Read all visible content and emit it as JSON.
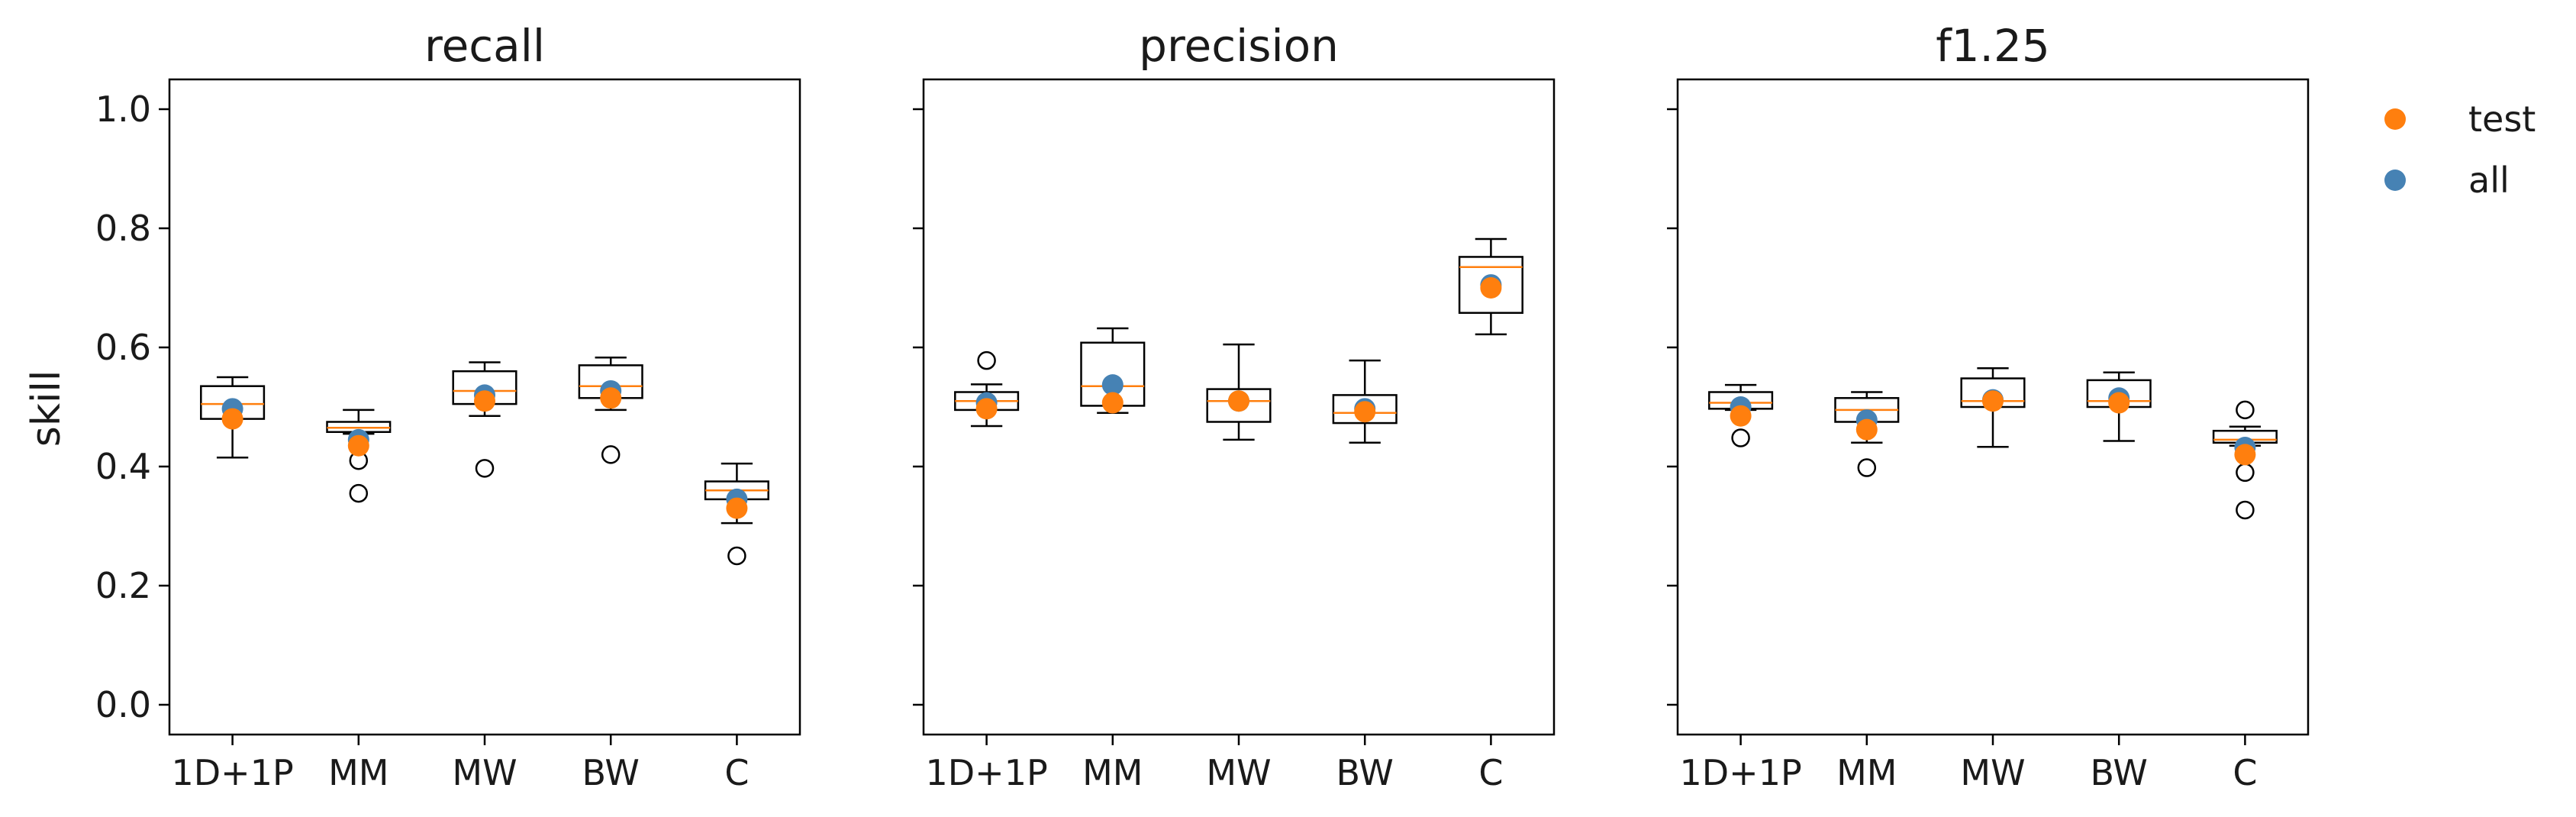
{
  "chart_data": {
    "type": "box",
    "ylabel": "skill",
    "categories": [
      "1D+1P",
      "MM",
      "MW",
      "BW",
      "C"
    ],
    "yticks": [
      "0.0",
      "0.2",
      "0.4",
      "0.6",
      "0.8",
      "1.0"
    ],
    "ylim": [
      -0.05,
      1.05
    ],
    "shared_y": true,
    "grid": false,
    "legend": {
      "placement": "top-right outside",
      "entries": [
        {
          "name": "test",
          "color": "#ff7f0e"
        },
        {
          "name": "all",
          "color": "#4682b4"
        }
      ]
    },
    "colors": {
      "box": "#000000",
      "median": "#ff7f0e",
      "test": "#ff7f0e",
      "all": "#4682b4"
    },
    "panels": [
      {
        "title": "recall",
        "boxes": [
          {
            "category": "1D+1P",
            "whisker_low": 0.415,
            "q1": 0.48,
            "median": 0.505,
            "q3": 0.535,
            "whisker_high": 0.55,
            "outliers": [],
            "test": 0.48,
            "all": 0.497
          },
          {
            "category": "MM",
            "whisker_low": 0.455,
            "q1": 0.458,
            "median": 0.465,
            "q3": 0.475,
            "whisker_high": 0.495,
            "outliers": [
              0.41,
              0.355
            ],
            "test": 0.435,
            "all": 0.445
          },
          {
            "category": "MW",
            "whisker_low": 0.485,
            "q1": 0.505,
            "median": 0.527,
            "q3": 0.56,
            "whisker_high": 0.575,
            "outliers": [
              0.397
            ],
            "test": 0.51,
            "all": 0.52
          },
          {
            "category": "BW",
            "whisker_low": 0.495,
            "q1": 0.515,
            "median": 0.535,
            "q3": 0.57,
            "whisker_high": 0.583,
            "outliers": [
              0.42
            ],
            "test": 0.515,
            "all": 0.527
          },
          {
            "category": "C",
            "whisker_low": 0.305,
            "q1": 0.345,
            "median": 0.36,
            "q3": 0.375,
            "whisker_high": 0.405,
            "outliers": [
              0.25
            ],
            "test": 0.33,
            "all": 0.345
          }
        ]
      },
      {
        "title": "precision",
        "boxes": [
          {
            "category": "1D+1P",
            "whisker_low": 0.468,
            "q1": 0.495,
            "median": 0.51,
            "q3": 0.525,
            "whisker_high": 0.538,
            "outliers": [
              0.578
            ],
            "test": 0.497,
            "all": 0.507
          },
          {
            "category": "MM",
            "whisker_low": 0.49,
            "q1": 0.502,
            "median": 0.535,
            "q3": 0.608,
            "whisker_high": 0.632,
            "outliers": [],
            "test": 0.507,
            "all": 0.537
          },
          {
            "category": "MW",
            "whisker_low": 0.445,
            "q1": 0.475,
            "median": 0.51,
            "q3": 0.53,
            "whisker_high": 0.605,
            "outliers": [],
            "test": 0.51,
            "all": 0.51
          },
          {
            "category": "BW",
            "whisker_low": 0.44,
            "q1": 0.473,
            "median": 0.49,
            "q3": 0.52,
            "whisker_high": 0.578,
            "outliers": [],
            "test": 0.492,
            "all": 0.497
          },
          {
            "category": "C",
            "whisker_low": 0.622,
            "q1": 0.658,
            "median": 0.735,
            "q3": 0.752,
            "whisker_high": 0.782,
            "outliers": [],
            "test": 0.7,
            "all": 0.705
          }
        ]
      },
      {
        "title": "f1.25",
        "boxes": [
          {
            "category": "1D+1P",
            "whisker_low": 0.495,
            "q1": 0.497,
            "median": 0.507,
            "q3": 0.525,
            "whisker_high": 0.537,
            "outliers": [
              0.448
            ],
            "test": 0.485,
            "all": 0.5
          },
          {
            "category": "MM",
            "whisker_low": 0.44,
            "q1": 0.475,
            "median": 0.495,
            "q3": 0.515,
            "whisker_high": 0.525,
            "outliers": [
              0.398
            ],
            "test": 0.462,
            "all": 0.478
          },
          {
            "category": "MW",
            "whisker_low": 0.433,
            "q1": 0.5,
            "median": 0.51,
            "q3": 0.548,
            "whisker_high": 0.565,
            "outliers": [],
            "test": 0.51,
            "all": 0.512
          },
          {
            "category": "BW",
            "whisker_low": 0.443,
            "q1": 0.5,
            "median": 0.51,
            "q3": 0.545,
            "whisker_high": 0.558,
            "outliers": [],
            "test": 0.507,
            "all": 0.515
          },
          {
            "category": "C",
            "whisker_low": 0.435,
            "q1": 0.44,
            "median": 0.445,
            "q3": 0.46,
            "whisker_high": 0.467,
            "outliers": [
              0.495,
              0.39,
              0.327
            ],
            "test": 0.42,
            "all": 0.432
          }
        ]
      }
    ]
  }
}
